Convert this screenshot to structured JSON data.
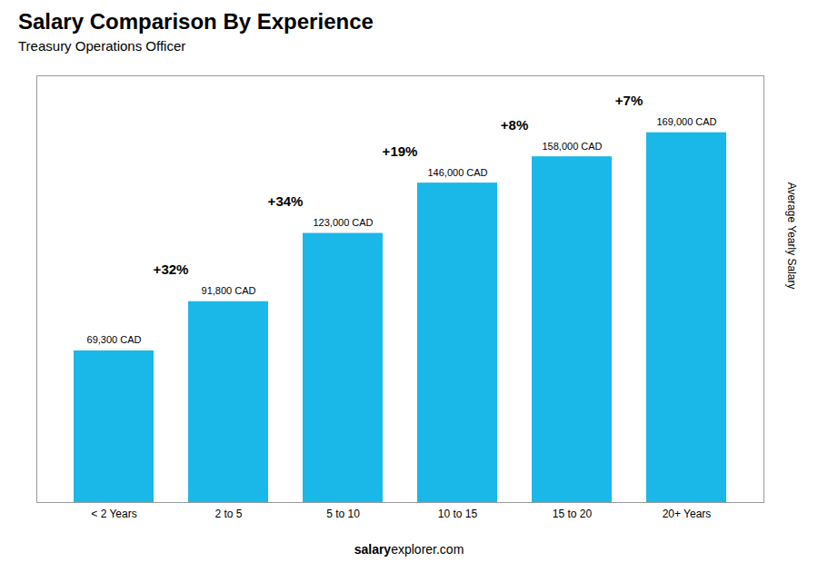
{
  "chart_data": {
    "type": "bar",
    "title": "Salary Comparison By Experience",
    "subtitle": "Treasury Operations Officer",
    "categories": [
      "< 2 Years",
      "2 to 5",
      "5 to 10",
      "10 to 15",
      "15 to 20",
      "20+ Years"
    ],
    "values": [
      69300,
      91800,
      123000,
      146000,
      158000,
      169000
    ],
    "value_labels": [
      "69,300 CAD",
      "91,800 CAD",
      "123,000 CAD",
      "146,000 CAD",
      "158,000 CAD",
      "169,000 CAD"
    ],
    "data_labels": true,
    "annotations": [
      "+32%",
      "+34%",
      "+19%",
      "+8%",
      "+7%"
    ],
    "ylabel": "Average Yearly Salary",
    "footer": [
      "salary",
      "explorer.com"
    ],
    "color": "#1ab8e8",
    "ylim": [
      0,
      195000
    ],
    "tick_labels": "x"
  }
}
